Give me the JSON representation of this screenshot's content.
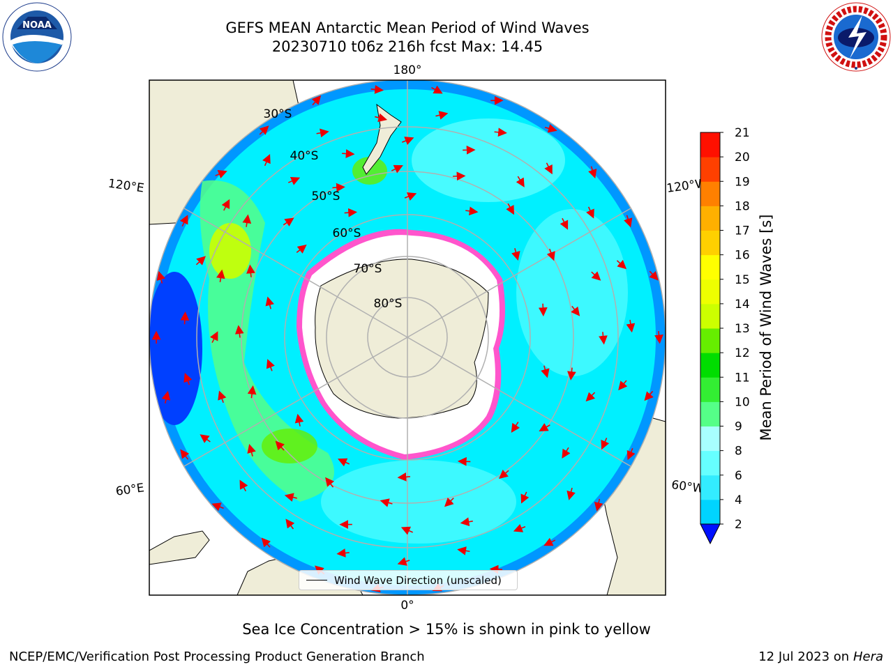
{
  "title_line1": "GEFS MEAN Antarctic Mean Period of Wind Waves",
  "title_line2": "20230710 t06z 216h fcst   Max: 14.45",
  "logos": {
    "left": "noora-logo",
    "right": "nws-logo",
    "noaa_text": "NOAA",
    "nws_ring": "NATIONAL WEATHER SERVICE"
  },
  "map": {
    "labels": {
      "lon_180": "180°",
      "lon_0": "0°",
      "lon_120e": "120°E",
      "lon_60e": "60°E",
      "lon_120w": "120°W",
      "lon_60w": "60°W",
      "lat_30": "30°S",
      "lat_40": "40°S",
      "lat_50": "50°S",
      "lat_60": "60°S",
      "lat_70": "70°S",
      "lat_80": "80°S"
    },
    "legend_label": "Wind Wave Direction (unscaled)"
  },
  "colorbar": {
    "label": "Mean Period of Wind Waves [s]",
    "ticks": [
      "2",
      "4",
      "6",
      "8",
      "9",
      "10",
      "11",
      "12",
      "13",
      "14",
      "15",
      "16",
      "17",
      "18",
      "19",
      "20",
      "21"
    ],
    "colors": [
      "#0050ff",
      "#00d4ff",
      "#33ecff",
      "#66ffff",
      "#a8ffff",
      "#55ff88",
      "#33ee33",
      "#00dd00",
      "#66ee00",
      "#ccff00",
      "#eeff00",
      "#ffff00",
      "#ffd000",
      "#ffb000",
      "#ff8000",
      "#ff4000",
      "#ff1000",
      "#ff0000"
    ],
    "under_color": "#0010ff"
  },
  "caption": "Sea Ice Concentration > 15% is shown in pink to yellow",
  "footer_left": "NCEP/EMC/Verification Post Processing Product Generation Branch",
  "footer_right_date": "12 Jul 2023 on ",
  "footer_right_host": "Hera"
}
